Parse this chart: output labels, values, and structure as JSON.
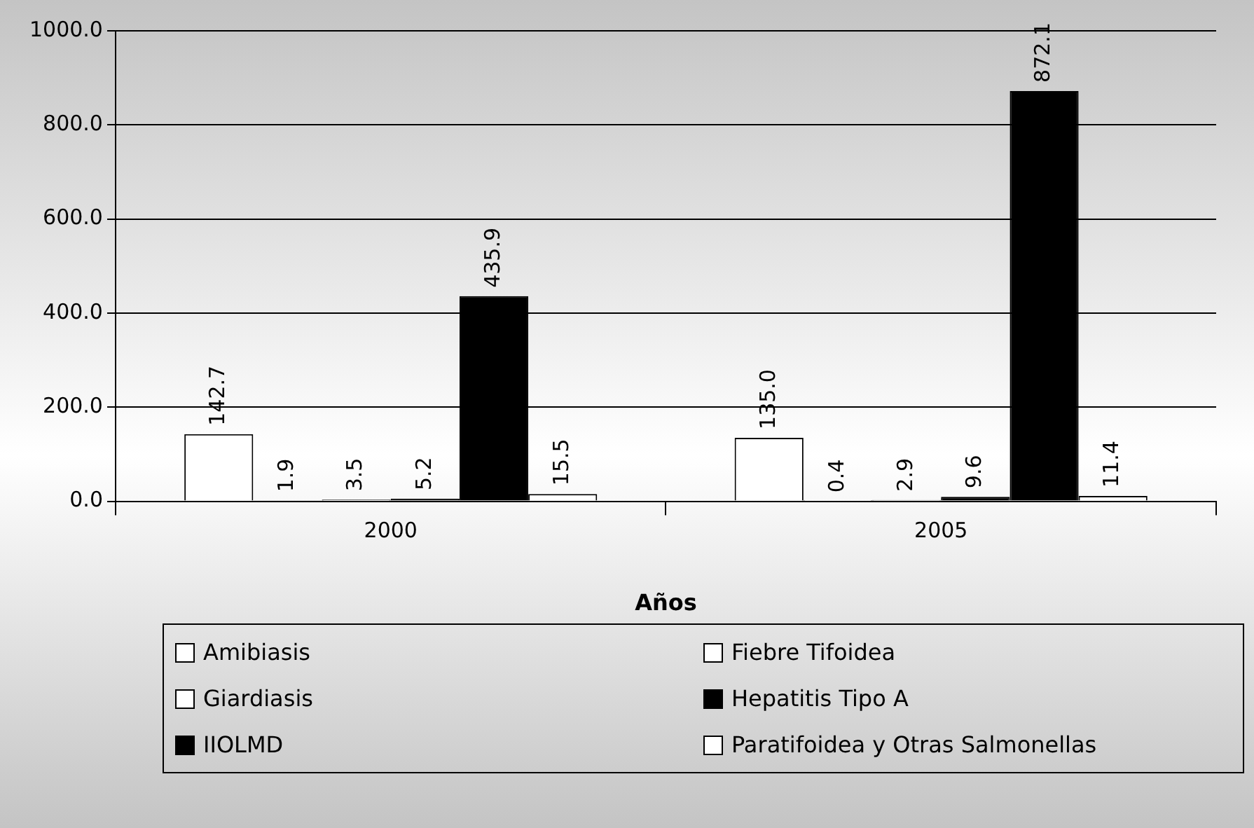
{
  "chart_data": {
    "type": "bar",
    "xlabel": "Años",
    "categories": [
      "2000",
      "2005"
    ],
    "series": [
      {
        "name": "Amibiasis",
        "color": "#ffffff",
        "values": [
          142.7,
          135.0
        ]
      },
      {
        "name": "Fiebre Tifoidea",
        "color": "#ffffff",
        "values": [
          1.9,
          0.4
        ]
      },
      {
        "name": "Giardiasis",
        "color": "#ffffff",
        "values": [
          3.5,
          2.9
        ]
      },
      {
        "name": "Hepatitis Tipo A",
        "color": "#000000",
        "values": [
          5.2,
          9.6
        ]
      },
      {
        "name": "IIOLMD",
        "color": "#000000",
        "values": [
          435.9,
          872.1
        ]
      },
      {
        "name": "Paratifoidea y Otras Salmonellas",
        "color": "#ffffff",
        "values": [
          15.5,
          11.4
        ]
      }
    ],
    "ylim": [
      0,
      1000
    ],
    "yticks": [
      {
        "value": 0,
        "label": "0.0"
      },
      {
        "value": 200,
        "label": "200.0"
      },
      {
        "value": 400,
        "label": "400.0"
      },
      {
        "value": 600,
        "label": "600.0"
      },
      {
        "value": 800,
        "label": "800.0"
      },
      {
        "value": 1000,
        "label": "1000.0"
      }
    ],
    "value_labels": [
      [
        "142.7",
        "135.0"
      ],
      [
        "1.9",
        "0.4"
      ],
      [
        "3.5",
        "2.9"
      ],
      [
        "5.2",
        "9.6"
      ],
      [
        "435.9",
        "872.1"
      ],
      [
        "15.5",
        "11.4"
      ]
    ],
    "grid": "y",
    "legend": "bottom"
  }
}
